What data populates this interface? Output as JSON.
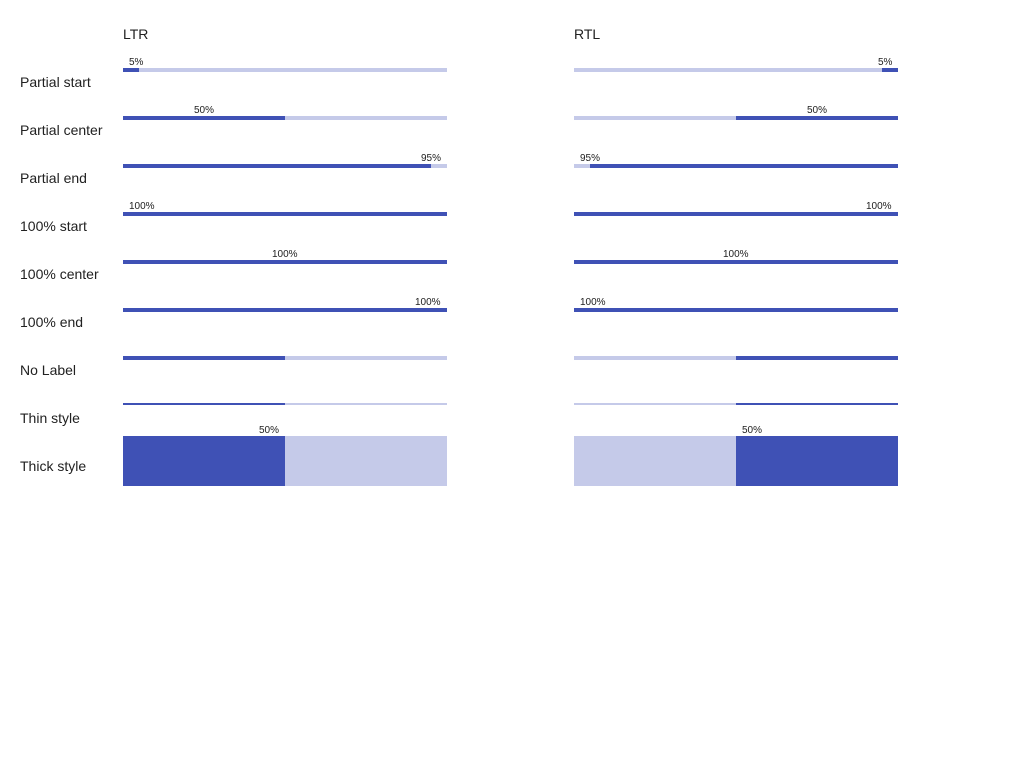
{
  "columns": {
    "ltr": "LTR",
    "rtl": "RTL"
  },
  "colors": {
    "fill": "#3f51b5",
    "track": "#c5cae9",
    "text": "#212121",
    "background": "#ffffff"
  },
  "rows": [
    {
      "label": "Partial start",
      "progress": 0.05,
      "bar_label": "5%",
      "label_position": "start",
      "style": "normal"
    },
    {
      "label": "Partial center",
      "progress": 0.5,
      "bar_label": "50%",
      "label_position": "center",
      "style": "normal"
    },
    {
      "label": "Partial end",
      "progress": 0.95,
      "bar_label": "95%",
      "label_position": "end",
      "style": "normal"
    },
    {
      "label": "100% start",
      "progress": 1.0,
      "bar_label": "100%",
      "label_position": "start",
      "style": "normal"
    },
    {
      "label": "100% center",
      "progress": 1.0,
      "bar_label": "100%",
      "label_position": "center",
      "style": "normal"
    },
    {
      "label": "100% end",
      "progress": 1.0,
      "bar_label": "100%",
      "label_position": "end",
      "style": "normal"
    },
    {
      "label": "No Label",
      "progress": 0.5,
      "bar_label": "",
      "label_position": "none",
      "style": "normal"
    },
    {
      "label": "Thin style",
      "progress": 0.5,
      "bar_label": "",
      "label_position": "none",
      "style": "thin"
    },
    {
      "label": "Thick style",
      "progress": 0.5,
      "bar_label": "50%",
      "label_position": "end",
      "style": "thick"
    }
  ]
}
